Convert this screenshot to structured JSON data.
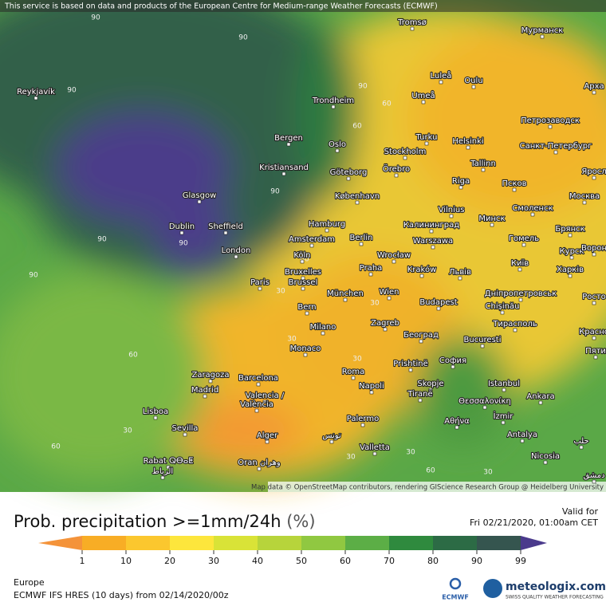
{
  "attribution_top": "This service is based on data and products of the European Centre for Medium-range Weather Forecasts (ECMWF)",
  "map_credit": "Map data © OpenStreetMap contributors, rendering GIScience Research Group @ Heidelberg University",
  "title": "Prob. precipitation >=1mm/24h",
  "unit": "(%)",
  "valid_label": "Valid for",
  "valid_time": "Fri 02/21/2020, 01:00am CET",
  "legend": {
    "ticks": [
      1,
      10,
      20,
      30,
      40,
      50,
      60,
      70,
      80,
      90,
      99
    ],
    "colors": [
      "#f4933a",
      "#f8ad25",
      "#fbc72e",
      "#fde63c",
      "#d9e337",
      "#b7d43b",
      "#90c841",
      "#5cae46",
      "#2f8a3e",
      "#2c6b45",
      "#35554f",
      "#4a3a8c"
    ]
  },
  "region": "Europe",
  "model": "ECMWF IFS HRES (10 days) from 02/14/2020/00z",
  "logos": {
    "ecmwf": "ECMWF",
    "brand": "meteologix.com",
    "tagline": "SWISS QUALITY WEATHER FORECASTING"
  },
  "cities": [
    "Tromsø",
    "Мурманск",
    "Reykjavík",
    "Luleå",
    "Oulu",
    "Арха",
    "Umeå",
    "Trondheim",
    "Петрозаводск",
    "Turku",
    "Helsinki",
    "Bergen",
    "Oslo",
    "Stockholm",
    "Санкт-Петербург",
    "Tallinn",
    "Örebro",
    "Göteborg",
    "Kristiansand",
    "Riga",
    "Псков",
    "Яросл",
    "Glasgow",
    "København",
    "Москва",
    "Vilnius",
    "Смоленск",
    "Минск",
    "Dublin",
    "Sheffield",
    "Hamburg",
    "Калининград",
    "Брянск",
    "Amsterdam",
    "Berlin",
    "Warszawa",
    "Гомель",
    "London",
    "Köln",
    "Wrocław",
    "Курск",
    "Ворон",
    "Bruxelles",
    "Praha",
    "Kraków",
    "Київ",
    "Brussel",
    "Paris",
    "Львів",
    "Харків",
    "München",
    "Wien",
    "Дніпропетровськ",
    "Росто",
    "Chișinău",
    "Budapest",
    "Bern",
    "Тирасполь",
    "Zagreb",
    "Milano",
    "Београд",
    "Bucuresti",
    "Красно",
    "Monaco",
    "Пяти",
    "Prishtinë",
    "София",
    "Roma",
    "Zaragoza",
    "Barcelona",
    "Istanbul",
    "Skopje",
    "Napoli",
    "Madrid",
    "Valencia /",
    "Tiranë",
    "Θεσσαλονίκη",
    "Ankara",
    "València",
    "Lisboa",
    "İzmir",
    "Palermo",
    "Αθήνα",
    "Sevilla",
    "Valletta",
    "Alger",
    "تونس",
    "Antalya",
    "Nicosia",
    "Rabat ⵕⴱⴰⵟ",
    "الرباط",
    "Oran وهران",
    "حلب",
    "دمشق"
  ],
  "contour_labels": [
    90,
    90,
    90,
    90,
    90,
    90,
    90,
    90,
    60,
    60,
    60,
    60,
    60,
    60,
    30,
    30,
    30,
    30,
    30,
    30,
    30,
    30
  ]
}
